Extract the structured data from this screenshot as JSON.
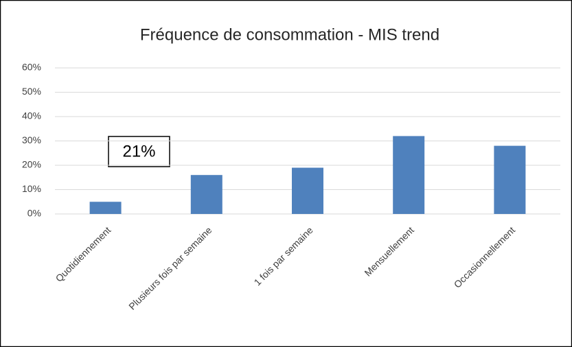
{
  "chart_data": {
    "type": "bar",
    "title": "Fréquence de consommation - MIS trend",
    "categories": [
      "Quotidiennement",
      "Plusieurs fois par semaine",
      "1 fois par semaine",
      "Mensuellement",
      "Occasionnellement"
    ],
    "values": [
      5,
      16,
      19,
      32,
      28
    ],
    "color": "#4f81bd",
    "ylim": [
      0,
      60
    ],
    "yticks": [
      {
        "value": 0,
        "label": "0%"
      },
      {
        "value": 10,
        "label": "10%"
      },
      {
        "value": 20,
        "label": "20%"
      },
      {
        "value": 30,
        "label": "30%"
      },
      {
        "value": 40,
        "label": "40%"
      },
      {
        "value": 50,
        "label": "50%"
      },
      {
        "value": 60,
        "label": "60%"
      }
    ],
    "grid": true,
    "annotation": "21%"
  }
}
